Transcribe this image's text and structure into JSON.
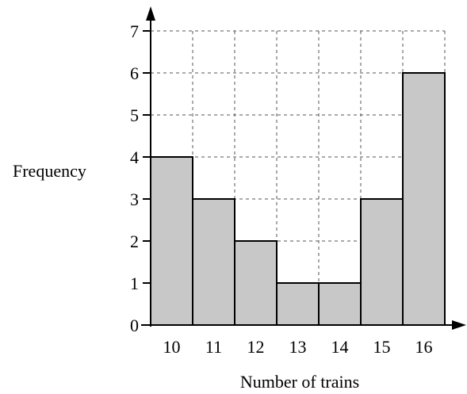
{
  "chart_data": {
    "type": "bar",
    "categories": [
      "10",
      "11",
      "12",
      "13",
      "14",
      "15",
      "16"
    ],
    "values": [
      4,
      3,
      2,
      1,
      1,
      3,
      6
    ],
    "xlabel": "Number of trains",
    "ylabel": "Frequency",
    "ylim": [
      0,
      7
    ],
    "yticks": [
      "0",
      "1",
      "2",
      "3",
      "4",
      "5",
      "6",
      "7"
    ],
    "grid": true,
    "grid_style": "dashed",
    "colors": {
      "bar_fill": "#c8c8c8",
      "bar_stroke": "#000000",
      "grid": "#555555",
      "axis": "#000000"
    }
  }
}
